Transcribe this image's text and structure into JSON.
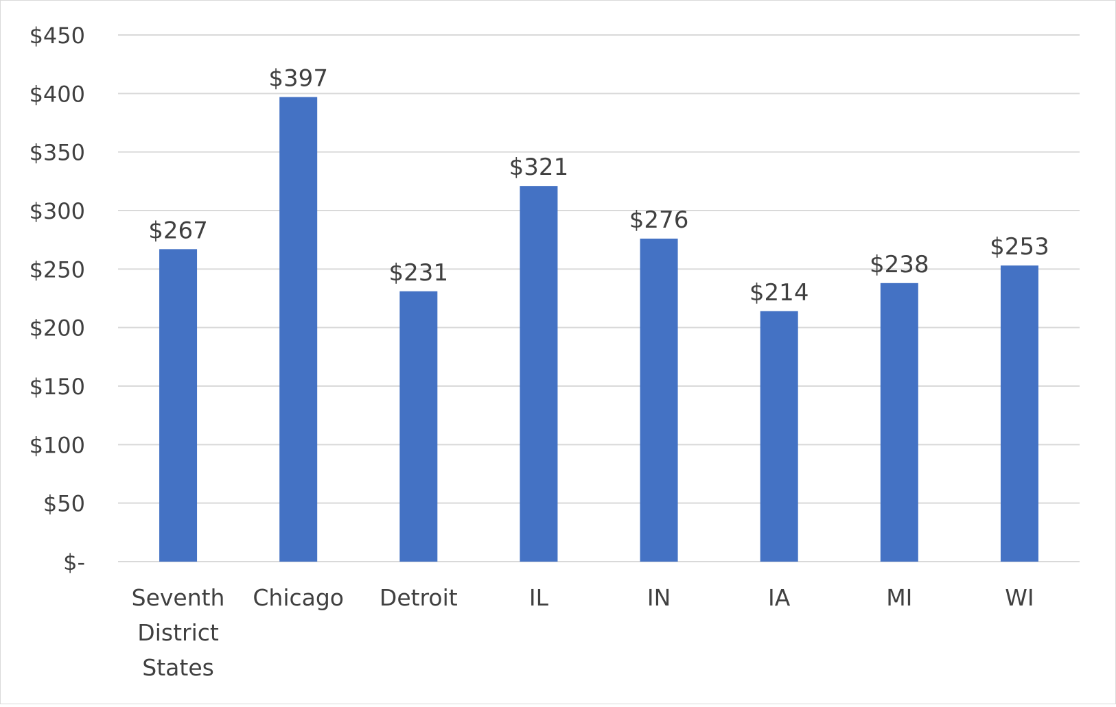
{
  "chart_data": {
    "type": "bar",
    "title": "",
    "xlabel": "",
    "ylabel": "",
    "categories": [
      [
        "Seventh",
        "District",
        "States"
      ],
      [
        "Chicago"
      ],
      [
        "Detroit"
      ],
      [
        "IL"
      ],
      [
        "IN"
      ],
      [
        "IA"
      ],
      [
        "MI"
      ],
      [
        "WI"
      ]
    ],
    "values": [
      267,
      397,
      231,
      321,
      276,
      214,
      238,
      253
    ],
    "data_labels": [
      "$267",
      "$397",
      "$231",
      "$321",
      "$276",
      "$214",
      "$238",
      "$253"
    ],
    "y_ticks": [
      0,
      50,
      100,
      150,
      200,
      250,
      300,
      350,
      400,
      450
    ],
    "y_tick_labels": [
      "$-",
      "$50",
      "$100",
      "$150",
      "$200",
      "$250",
      "$300",
      "$350",
      "$400",
      "$450"
    ],
    "ylim": [
      0,
      450
    ],
    "grid": true,
    "legend": "none",
    "colors": {
      "bar": "#4472c4",
      "grid": "#d9d9d9",
      "text": "#404040"
    }
  }
}
